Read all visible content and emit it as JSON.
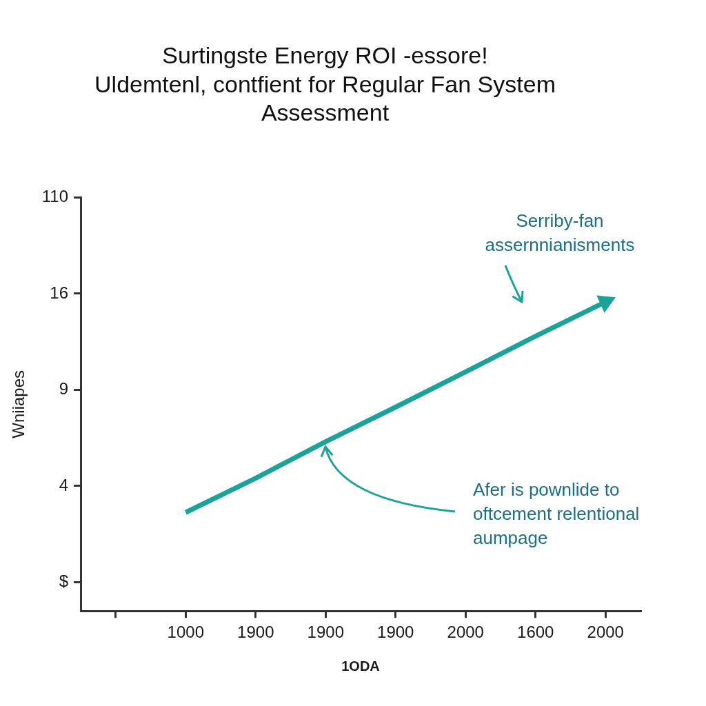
{
  "chart_data": {
    "type": "line",
    "title": [
      "Surtingste Energy ROI -essore!",
      "Uldemtenl, contfient for Regular Fan System",
      "Assessment"
    ],
    "x_label": "1ODA",
    "y_label": "Wniiapes",
    "categories": [
      null,
      "1000",
      "1900",
      "1900",
      "1900",
      "2000",
      "1600",
      "2000"
    ],
    "values": [
      null,
      2.9,
      4.4,
      6.3,
      8.1,
      10.3,
      12.9,
      15.4
    ],
    "color": "#1aa398",
    "marker": "arrow",
    "ylim": [
      -1.2,
      110
    ],
    "yticks": [
      {
        "value": 0,
        "label": "$"
      },
      4,
      9,
      16,
      110
    ],
    "grid": false,
    "annotations": [
      {
        "text": [
          "Serriby-fan",
          "assernnianisments"
        ]
      },
      {
        "text": [
          "Afer is pownlide to",
          "oftcement relentional",
          "aumpage"
        ]
      }
    ]
  }
}
